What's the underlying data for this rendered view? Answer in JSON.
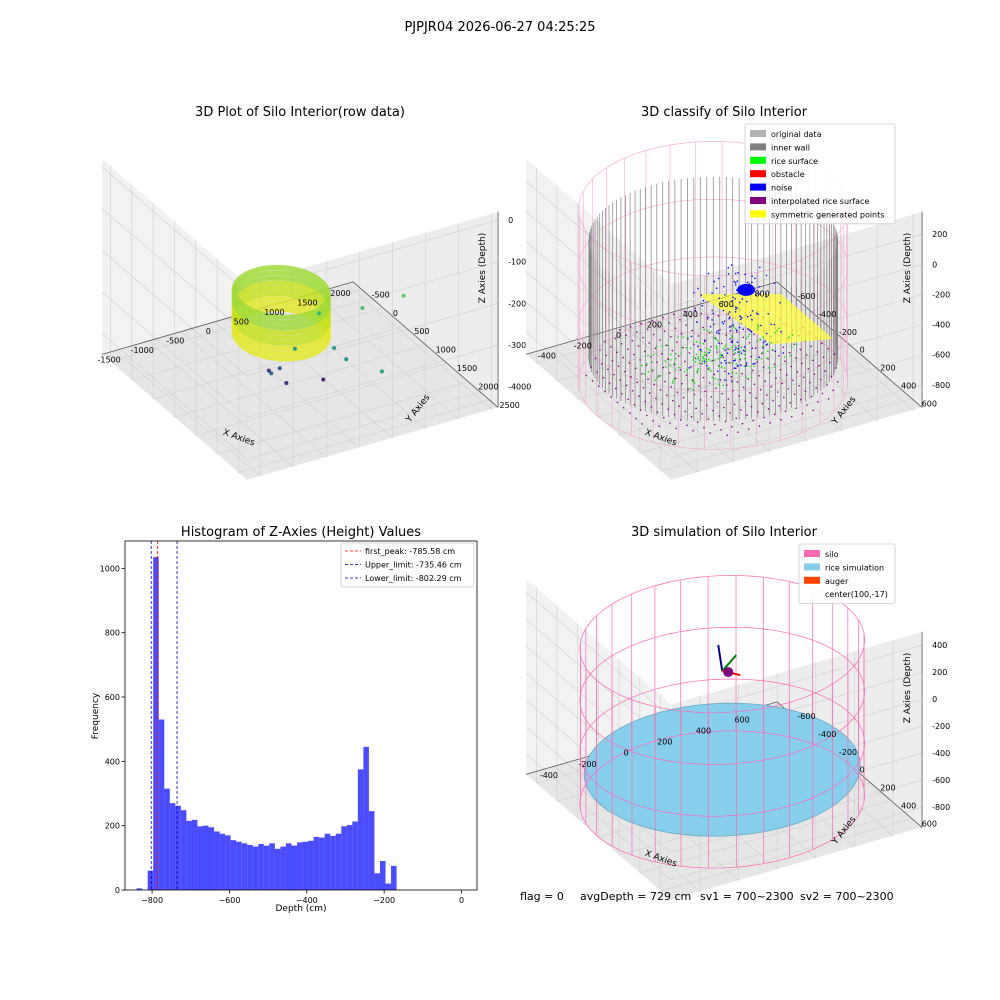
{
  "suptitle": "PJPJR04 2026-06-27 04:25:25",
  "status": {
    "flag": "flag = 0",
    "avg_depth": "avgDepth = 729 cm",
    "sv1": "sv1 = 700~2300",
    "sv2": "sv2 = 700~2300"
  },
  "colors": {
    "hist_bar": "#0000ff",
    "first_peak": "#ff0000",
    "limit": "#0000aa",
    "silo": "#ff69b4",
    "rice_sim": "#87ceeb",
    "auger": "#ff4500",
    "inner_wall": "#808080",
    "rice_surface": "#00ff00",
    "noise": "#0000ff",
    "interpolated": "#800080",
    "symmetric": "#ffff00"
  },
  "chart_data": [
    {
      "type": "scatter",
      "title": "3D Plot of Silo Interior(row data)",
      "xlabel": "X Axies",
      "ylabel": "Y Axies",
      "zlabel": "Z Axies (Depth)",
      "x_ticks": [
        "-1500",
        "-1000",
        "-500",
        "0",
        "500",
        "1000",
        "1500",
        "2000"
      ],
      "y_ticks": [
        "-500",
        "0",
        "500",
        "1000",
        "1500",
        "2000",
        "2500"
      ],
      "z_ticks": [
        "0",
        "-1000",
        "-2000",
        "-3000",
        "-4000"
      ],
      "xlim": [
        -1700,
        2100
      ],
      "ylim": [
        -700,
        2700
      ],
      "zlim": [
        -4500,
        200
      ],
      "ring": {
        "cx": -600,
        "cy": 1800,
        "r": 600,
        "z_top": -1300,
        "z_bottom": -2300
      },
      "outliers": [
        {
          "x": 800,
          "y": 2500,
          "z": -1400
        },
        {
          "x": 500,
          "y": 2000,
          "z": -2000
        },
        {
          "x": 100,
          "y": 1600,
          "z": -2300
        },
        {
          "x": 200,
          "y": 1800,
          "z": -3000
        },
        {
          "x": 600,
          "y": 2300,
          "z": -3300
        },
        {
          "x": -200,
          "y": 1500,
          "z": -3100
        },
        {
          "x": -300,
          "y": 1300,
          "z": -3700
        },
        {
          "x": 100,
          "y": 1700,
          "z": -3800
        },
        {
          "x": -400,
          "y": 1200,
          "z": -3800
        },
        {
          "x": -300,
          "y": 1100,
          "z": -4000
        },
        {
          "x": -200,
          "y": 1300,
          "z": -4100
        },
        {
          "x": 900,
          "y": 1000,
          "z": -4300
        }
      ]
    },
    {
      "type": "scatter",
      "title": "3D classify of Silo Interior",
      "xlabel": "X Axies",
      "ylabel": "Y Axies",
      "zlabel": "Z Axies (Depth)",
      "x_ticks": [
        "-400",
        "-200",
        "0",
        "200",
        "400",
        "600",
        "800"
      ],
      "y_ticks": [
        "-600",
        "-400",
        "-200",
        "0",
        "200",
        "400",
        "600"
      ],
      "z_ticks": [
        "200",
        "0",
        "-200",
        "-400",
        "-600",
        "-800"
      ],
      "xlim": [
        -550,
        850
      ],
      "ylim": [
        -700,
        700
      ],
      "zlim": [
        -950,
        350
      ],
      "legend": [
        "original data",
        "inner wall",
        "rice surface",
        "obstacle",
        "noise",
        "interpolated rice surface",
        "symmetric generated points"
      ],
      "legend_colors": [
        "#b3b3b3",
        "#808080",
        "#00ff00",
        "#ff0000",
        "#0000ff",
        "#800080",
        "#ffff00"
      ],
      "legend_loc": "upper right",
      "silo": {
        "cx": 100,
        "cy": -17,
        "r": 650,
        "z_top": 200,
        "z_bottom": -950
      },
      "inner_wall": {
        "r": 600,
        "z_top": 0,
        "z_bottom": -800
      }
    },
    {
      "type": "bar",
      "title": "Histogram of Z-Axies (Height) Values",
      "xlabel": "Depth (cm)",
      "ylabel": "Frequency",
      "x_ticks": [
        -800,
        -600,
        -400,
        -200,
        0
      ],
      "y_ticks": [
        0,
        200,
        400,
        600,
        800,
        1000
      ],
      "xlim": [
        -870,
        40
      ],
      "ylim": [
        0,
        1085
      ],
      "bin_start": -840,
      "bin_width": 14.3,
      "values": [
        5,
        0,
        60,
        1035,
        530,
        315,
        270,
        262,
        248,
        215,
        218,
        198,
        200,
        195,
        182,
        175,
        170,
        155,
        150,
        145,
        140,
        135,
        143,
        138,
        145,
        128,
        135,
        145,
        138,
        148,
        150,
        153,
        165,
        163,
        175,
        168,
        175,
        198,
        202,
        213,
        375,
        445,
        245,
        52,
        90,
        20,
        75
      ],
      "lines": [
        {
          "label": "first_peak: -785.58 cm",
          "x": -785.58,
          "color": "#ff0000"
        },
        {
          "label": "Upper_limit: -735.46 cm",
          "x": -735.46,
          "color": "#0000aa"
        },
        {
          "label": "Lower_limit: -802.29 cm",
          "x": -802.29,
          "color": "#0000aa"
        }
      ],
      "legend_loc": "upper right"
    },
    {
      "type": "scatter",
      "title": "3D simulation of Silo Interior",
      "xlabel": "X Axies",
      "ylabel": "Y Axies",
      "zlabel": "Z Axies (Depth)",
      "x_ticks": [
        "-400",
        "-200",
        "0",
        "200",
        "400",
        "600"
      ],
      "y_ticks": [
        "-600",
        "-400",
        "-200",
        "0",
        "200",
        "400",
        "600"
      ],
      "z_ticks": [
        "400",
        "200",
        "0",
        "-200",
        "-400",
        "-600",
        "-800"
      ],
      "xlim": [
        -550,
        750
      ],
      "ylim": [
        -700,
        700
      ],
      "zlim": [
        -950,
        500
      ],
      "legend": [
        "silo",
        "rice simulation",
        "auger",
        "center(100,-17)"
      ],
      "legend_colors": [
        "#ff69b4",
        "#87ceeb",
        "#ff4500",
        ""
      ],
      "legend_loc": "upper right",
      "silo": {
        "cx": 100,
        "cy": -17,
        "r": 650,
        "z_top": 200,
        "z_bottom": -950
      },
      "rice_surface_z": -730
    }
  ]
}
